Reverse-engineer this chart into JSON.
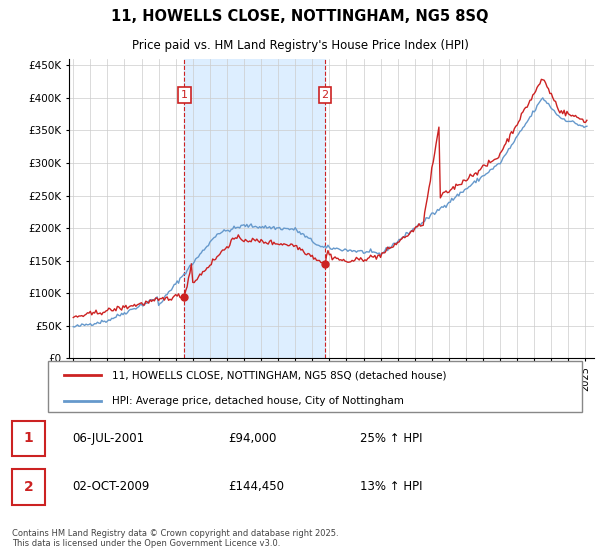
{
  "title": "11, HOWELLS CLOSE, NOTTINGHAM, NG5 8SQ",
  "subtitle": "Price paid vs. HM Land Registry's House Price Index (HPI)",
  "legend_line1": "11, HOWELLS CLOSE, NOTTINGHAM, NG5 8SQ (detached house)",
  "legend_line2": "HPI: Average price, detached house, City of Nottingham",
  "footer": "Contains HM Land Registry data © Crown copyright and database right 2025.\nThis data is licensed under the Open Government Licence v3.0.",
  "purchase1_date": "06-JUL-2001",
  "purchase1_price": 94000,
  "purchase1_label": "25% ↑ HPI",
  "purchase1_x": 2001.5,
  "purchase2_date": "02-OCT-2009",
  "purchase2_price": 144450,
  "purchase2_label": "13% ↑ HPI",
  "purchase2_x": 2009.75,
  "ylim": [
    0,
    460000
  ],
  "yticks": [
    0,
    50000,
    100000,
    150000,
    200000,
    250000,
    300000,
    350000,
    400000,
    450000
  ],
  "ytick_labels": [
    "£0",
    "£50K",
    "£100K",
    "£150K",
    "£200K",
    "£250K",
    "£300K",
    "£350K",
    "£400K",
    "£450K"
  ],
  "hpi_color": "#6699cc",
  "price_color": "#cc2222",
  "dashed_color": "#cc2222",
  "bg_color": "#ddeeff",
  "plot_bg": "#ffffff",
  "grid_color": "#cccccc",
  "xlim": [
    1994.75,
    2025.5
  ],
  "xtick_years": [
    1995,
    1996,
    1997,
    1998,
    1999,
    2000,
    2001,
    2002,
    2003,
    2004,
    2005,
    2006,
    2007,
    2008,
    2009,
    2010,
    2011,
    2012,
    2013,
    2014,
    2015,
    2016,
    2017,
    2018,
    2019,
    2020,
    2021,
    2022,
    2023,
    2024,
    2025
  ]
}
